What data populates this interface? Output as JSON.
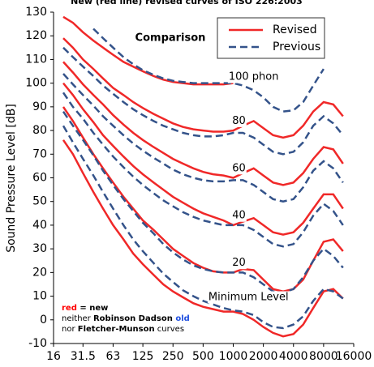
{
  "chart_data": {
    "type": "line",
    "title": "New (red line) revised curves of ISO 226:2003",
    "subtitle": "Comparison",
    "y_label": "Sound Pressure Level [dB]",
    "log_x": true,
    "grid": false,
    "legend": "top-right",
    "x": [
      20,
      25,
      31.5,
      40,
      50,
      63,
      80,
      100,
      125,
      160,
      200,
      250,
      315,
      400,
      500,
      630,
      800,
      1000,
      1250,
      1600,
      2000,
      2500,
      3150,
      4000,
      5000,
      6300,
      8000,
      10000,
      12500
    ],
    "xlim": [
      16,
      16000
    ],
    "xticks": [
      16,
      31.5,
      63,
      125,
      250,
      500,
      1000,
      2000,
      4000,
      8000,
      16000
    ],
    "ylim": [
      -10,
      130
    ],
    "yticks": [
      -10,
      0,
      10,
      20,
      30,
      40,
      50,
      60,
      70,
      80,
      90,
      100,
      110,
      120,
      130
    ],
    "series": [
      {
        "name": "Revised",
        "color": "#f02828",
        "dashed": false,
        "curves": [
          [
            128,
            125.5,
            121.5,
            118,
            115,
            112,
            109,
            107,
            105,
            103,
            101.5,
            100.5,
            100,
            99.5,
            99.5,
            99.5,
            99.5,
            100,
            null,
            null,
            null,
            null,
            null,
            null,
            null,
            null,
            null,
            null,
            null
          ],
          [
            119,
            115,
            110,
            106,
            102,
            98,
            95,
            92,
            89.5,
            87,
            85,
            83,
            81.5,
            80.5,
            80,
            79.5,
            79.5,
            80,
            82,
            84,
            81,
            78,
            77,
            78,
            82,
            88,
            92,
            91,
            86
          ],
          [
            109,
            104.5,
            99.5,
            95,
            91,
            86.5,
            82.5,
            79,
            76,
            73,
            70.5,
            68,
            66,
            64,
            62.5,
            61.5,
            61,
            60,
            62,
            64,
            61,
            58,
            57,
            58,
            62,
            68,
            73,
            72,
            66
          ],
          [
            100,
            95,
            89,
            83.5,
            78,
            73.5,
            69,
            65,
            61.5,
            58,
            55,
            52,
            49.5,
            47,
            45,
            43.5,
            42,
            40,
            41.5,
            43,
            40,
            37,
            36,
            37,
            41,
            47,
            53,
            53,
            47
          ],
          [
            90,
            84,
            77,
            70,
            64,
            58,
            52,
            47,
            42,
            38,
            34,
            30,
            27,
            24,
            22,
            20.5,
            20,
            20,
            21.5,
            21,
            17,
            13,
            12,
            13,
            17,
            25,
            33,
            34,
            29
          ],
          [
            76,
            70,
            62,
            54,
            47,
            40,
            34,
            28,
            23.5,
            19,
            15,
            12,
            9.5,
            7,
            5.5,
            4.5,
            3.5,
            3.5,
            2.5,
            0,
            -3,
            -5.5,
            -7,
            -6,
            -2,
            5,
            12,
            13,
            9
          ]
        ]
      },
      {
        "name": "Previous",
        "color": "#34538a",
        "dashed": true,
        "curves": [
          [
            null,
            null,
            null,
            123,
            119,
            115,
            111,
            108,
            105.5,
            103.5,
            102,
            101,
            100.5,
            100,
            100,
            100,
            100,
            100,
            99,
            97,
            94,
            90,
            88,
            88.5,
            92,
            99,
            106,
            null,
            null
          ],
          [
            115,
            111,
            107,
            103,
            99,
            95.5,
            92,
            89,
            86.5,
            84,
            82,
            80.5,
            79,
            78,
            77.5,
            77.5,
            78,
            79,
            79,
            77,
            74,
            71,
            70,
            71,
            75,
            82,
            86,
            83,
            78
          ],
          [
            104,
            99.5,
            95,
            90.5,
            86,
            82,
            78,
            74.5,
            71.5,
            68.5,
            66,
            63.5,
            61.5,
            60,
            59,
            58.5,
            58.5,
            59,
            59,
            57,
            54,
            51,
            50,
            51,
            56,
            63,
            67,
            64,
            58
          ],
          [
            96,
            90,
            85,
            79,
            74,
            69,
            64.5,
            60.5,
            57,
            53.5,
            50.5,
            48,
            45.5,
            43.5,
            42,
            41,
            40,
            40,
            40,
            38,
            35,
            32,
            31,
            32,
            37,
            44,
            49,
            46,
            40
          ],
          [
            88,
            82,
            76,
            69.5,
            63,
            57,
            51,
            46,
            41,
            36.5,
            32,
            28.5,
            25.5,
            23,
            21.5,
            20.5,
            20,
            20,
            20,
            18,
            15,
            12,
            11.5,
            13,
            18,
            25,
            30,
            27,
            22
          ],
          [
            82,
            75,
            68,
            61,
            54,
            47,
            40,
            34,
            29,
            24,
            19.5,
            16,
            12.5,
            10,
            8,
            6.5,
            5,
            4,
            3.5,
            2,
            -1,
            -3,
            -3.5,
            -2,
            1.5,
            8,
            13,
            12,
            9
          ]
        ]
      }
    ],
    "annotations": [
      {
        "text": "100 phon",
        "x": 1600,
        "y": 102.6
      },
      {
        "text": "80",
        "x": 1140,
        "y": 84
      },
      {
        "text": "60",
        "x": 1140,
        "y": 64
      },
      {
        "text": "40",
        "x": 1140,
        "y": 44
      },
      {
        "text": "20",
        "x": 1140,
        "y": 24
      },
      {
        "text": "Minimum Level",
        "x": 1420,
        "y": 9.5
      }
    ],
    "notes": [
      [
        {
          "text": "red",
          "color": "#ff0000"
        },
        {
          "text": " = new",
          "color": "#000000"
        }
      ],
      [
        {
          "text": "neither ",
          "color": "#000000",
          "light": true
        },
        {
          "text": "Robinson Dadson",
          "color": "#000000"
        },
        {
          "text": " old",
          "color": "#2050e0"
        }
      ],
      [
        {
          "text": "nor ",
          "color": "#000000",
          "light": true
        },
        {
          "text": "Fletcher-Munson",
          "color": "#000000"
        },
        {
          "text": " curves",
          "color": "#000000",
          "light": true
        }
      ]
    ]
  }
}
